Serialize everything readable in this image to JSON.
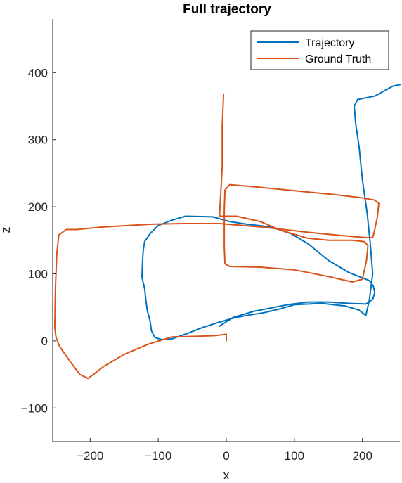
{
  "chart_data": {
    "type": "line",
    "title": "Full trajectory",
    "xlabel": "x",
    "ylabel": "z",
    "xlim": [
      -255,
      255
    ],
    "ylim": [
      -150,
      480
    ],
    "xticks": [
      -200,
      -100,
      0,
      100,
      200
    ],
    "yticks": [
      -100,
      0,
      100,
      200,
      300,
      400
    ],
    "grid": false,
    "legend_position": "top-right",
    "series": [
      {
        "name": "Trajectory",
        "color": "#0072BD",
        "points": [
          [
            -10,
            22
          ],
          [
            10,
            35
          ],
          [
            40,
            44
          ],
          [
            70,
            50
          ],
          [
            90,
            54
          ],
          [
            120,
            58
          ],
          [
            150,
            58
          ],
          [
            180,
            56
          ],
          [
            205,
            55
          ],
          [
            215,
            62
          ],
          [
            218,
            72
          ],
          [
            216,
            82
          ],
          [
            210,
            90
          ],
          [
            180,
            102
          ],
          [
            150,
            120
          ],
          [
            120,
            145
          ],
          [
            95,
            160
          ],
          [
            65,
            170
          ],
          [
            30,
            174
          ],
          [
            5,
            178
          ],
          [
            -20,
            185
          ],
          [
            -60,
            186
          ],
          [
            -80,
            180
          ],
          [
            -100,
            172
          ],
          [
            -112,
            160
          ],
          [
            -120,
            148
          ],
          [
            -122,
            135
          ],
          [
            -123,
            120
          ],
          [
            -124,
            95
          ],
          [
            -120,
            78
          ],
          [
            -118,
            60
          ],
          [
            -116,
            45
          ],
          [
            -112,
            30
          ],
          [
            -110,
            15
          ],
          [
            -105,
            5
          ],
          [
            -95,
            2
          ],
          [
            -80,
            3
          ],
          [
            -55,
            12
          ],
          [
            -35,
            20
          ],
          [
            -10,
            28
          ],
          [
            10,
            34
          ],
          [
            30,
            38
          ],
          [
            55,
            42
          ],
          [
            80,
            48
          ],
          [
            100,
            54
          ],
          [
            140,
            56
          ],
          [
            175,
            52
          ],
          [
            195,
            46
          ],
          [
            205,
            38
          ],
          [
            210,
            60
          ],
          [
            215,
            100
          ],
          [
            212,
            140
          ],
          [
            207,
            190
          ],
          [
            200,
            240
          ],
          [
            195,
            290
          ],
          [
            190,
            325
          ],
          [
            188,
            350
          ],
          [
            193,
            360
          ],
          [
            218,
            365
          ],
          [
            245,
            380
          ],
          [
            255,
            382
          ]
        ]
      },
      {
        "name": "Ground Truth",
        "color": "#D95319",
        "points": [
          [
            0,
            0
          ],
          [
            0,
            10
          ],
          [
            -15,
            8
          ],
          [
            -40,
            7
          ],
          [
            -80,
            6
          ],
          [
            -115,
            -5
          ],
          [
            -150,
            -20
          ],
          [
            -180,
            -38
          ],
          [
            -203,
            -56
          ],
          [
            -215,
            -50
          ],
          [
            -230,
            -30
          ],
          [
            -245,
            -8
          ],
          [
            -250,
            5
          ],
          [
            -252,
            20
          ],
          [
            -251,
            80
          ],
          [
            -249,
            130
          ],
          [
            -246,
            158
          ],
          [
            -235,
            166
          ],
          [
            -220,
            166
          ],
          [
            -180,
            170
          ],
          [
            -110,
            174
          ],
          [
            -60,
            175
          ],
          [
            -10,
            175
          ],
          [
            50,
            170
          ],
          [
            120,
            162
          ],
          [
            170,
            157
          ],
          [
            205,
            154
          ],
          [
            215,
            154
          ],
          [
            218,
            166
          ],
          [
            222,
            185
          ],
          [
            224,
            205
          ],
          [
            218,
            210
          ],
          [
            195,
            214
          ],
          [
            160,
            218
          ],
          [
            100,
            224
          ],
          [
            40,
            230
          ],
          [
            5,
            233
          ],
          [
            -2,
            225
          ],
          [
            -3,
            195
          ],
          [
            -3,
            175
          ],
          [
            -3,
            140
          ],
          [
            -2,
            115
          ],
          [
            5,
            111
          ],
          [
            50,
            110
          ],
          [
            100,
            106
          ],
          [
            150,
            96
          ],
          [
            185,
            88
          ],
          [
            200,
            92
          ],
          [
            206,
            120
          ],
          [
            208,
            142
          ],
          [
            203,
            148
          ],
          [
            185,
            150
          ],
          [
            150,
            150
          ],
          [
            120,
            153
          ],
          [
            80,
            165
          ],
          [
            50,
            178
          ],
          [
            15,
            186
          ],
          [
            -10,
            186
          ],
          [
            -6,
            260
          ],
          [
            -6,
            320
          ],
          [
            -4,
            368
          ]
        ]
      }
    ]
  }
}
